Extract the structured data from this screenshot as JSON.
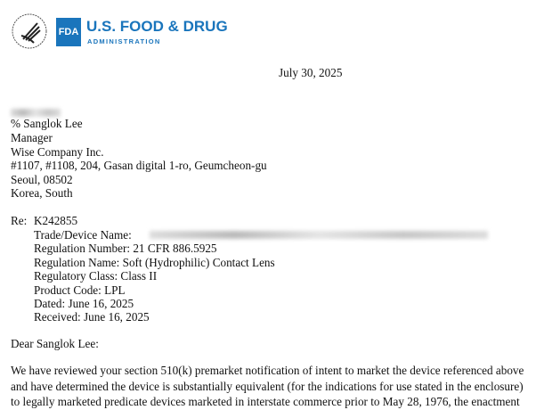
{
  "header": {
    "fda_badge": "FDA",
    "agency_name": "U.S. FOOD & DRUG",
    "agency_sub": "ADMINISTRATION"
  },
  "letter": {
    "date": "July 30, 2025",
    "address": [
      "% Sanglok Lee",
      "Manager",
      "Wise Company Inc.",
      "#1107, #1108, 204, Gasan digital 1-ro, Geumcheon-gu",
      "Seoul, 08502",
      "Korea, South"
    ],
    "re_label": "Re:",
    "re_number": "K242855",
    "re_fields": [
      "Trade/Device Name:",
      "Regulation Number:  21 CFR 886.5925",
      "Regulation Name:  Soft (Hydrophilic) Contact Lens",
      "Regulatory Class:  Class II",
      "Product Code:  LPL",
      "Dated:  June 16, 2025",
      "Received:  June 16, 2025"
    ],
    "salutation": "Dear Sanglok Lee:",
    "body_lines": [
      "We have reviewed your section 510(k) premarket notification of intent to market the device referenced above",
      "and have determined the device is substantially equivalent (for the indications for use stated in the enclosure)",
      "to legally marketed predicate devices marketed in interstate commerce prior to May 28, 1976, the enactment"
    ]
  }
}
